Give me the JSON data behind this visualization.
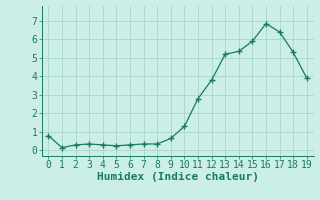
{
  "x": [
    0,
    1,
    2,
    3,
    4,
    5,
    6,
    7,
    8,
    9,
    10,
    11,
    12,
    13,
    14,
    15,
    16,
    17,
    18,
    19
  ],
  "y": [
    0.8,
    0.15,
    0.3,
    0.35,
    0.3,
    0.25,
    0.3,
    0.35,
    0.35,
    0.65,
    1.3,
    2.8,
    3.8,
    5.2,
    5.35,
    5.9,
    6.85,
    6.4,
    5.3,
    3.9
  ],
  "xlabel": "Humidex (Indice chaleur)",
  "ylim": [
    -0.3,
    7.8
  ],
  "xlim": [
    -0.5,
    19.5
  ],
  "yticks": [
    0,
    1,
    2,
    3,
    4,
    5,
    6,
    7
  ],
  "xticks": [
    0,
    1,
    2,
    3,
    4,
    5,
    6,
    7,
    8,
    9,
    10,
    11,
    12,
    13,
    14,
    15,
    16,
    17,
    18,
    19
  ],
  "line_color": "#1a7a5e",
  "marker": "+",
  "marker_size": 4,
  "bg_color": "#cceee8",
  "grid_color": "#aad4cc",
  "xlabel_fontsize": 8,
  "tick_fontsize": 7
}
